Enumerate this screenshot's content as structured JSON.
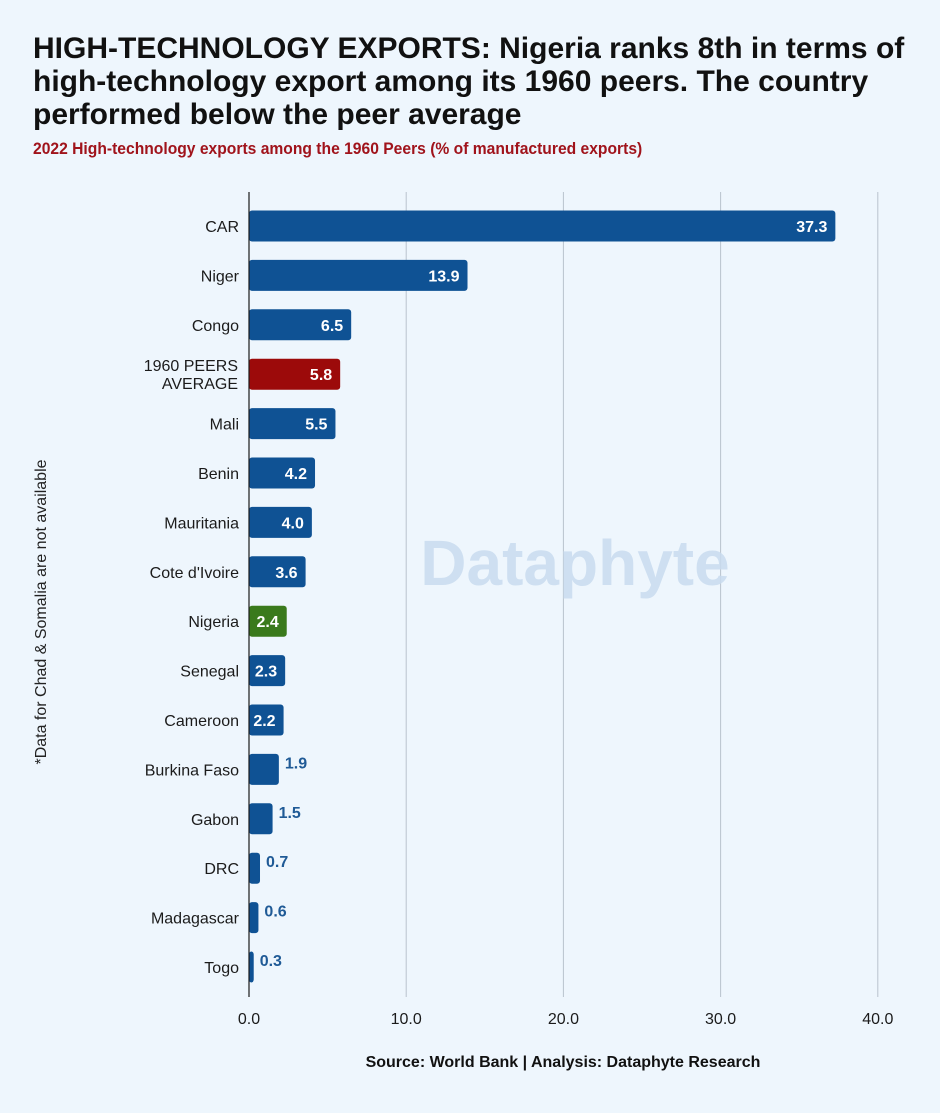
{
  "header": {
    "title": "HIGH-TECHNOLOGY EXPORTS: Nigeria ranks 8th in terms of high-technology export among its 1960 peers. The country performed below the peer average",
    "subtitle": "2022 High-technology exports among the 1960 Peers (% of manufactured exports)"
  },
  "side_note": "*Data for Chad & Somalia are not available",
  "watermark": "Dataphyte",
  "source": "Source: World Bank | Analysis: Dataphyte Research",
  "colors": {
    "default": "#0f5294",
    "average": "#9c0a0a",
    "highlight": "#3a7a1c",
    "grid": "#b9c3cd"
  },
  "chart_data": {
    "type": "bar",
    "orientation": "horizontal",
    "title": "2022 High-technology exports among the 1960 Peers (% of manufactured exports)",
    "categories": [
      "CAR",
      "Niger",
      "Congo",
      "1960 PEERS AVERAGE",
      "Mali",
      "Benin",
      "Mauritania",
      "Cote d'Ivoire",
      "Nigeria",
      "Senegal",
      "Cameroon",
      "Burkina Faso",
      "Gabon",
      "DRC",
      "Madagascar",
      "Togo"
    ],
    "values": [
      37.3,
      13.9,
      6.5,
      5.8,
      5.5,
      4.2,
      4.0,
      3.6,
      2.4,
      2.3,
      2.2,
      1.9,
      1.5,
      0.7,
      0.6,
      0.3
    ],
    "value_labels": [
      "37.3",
      "13.9",
      "6.5",
      "5.8",
      "5.5",
      "4.2",
      "4.0",
      "3.6",
      "2.4",
      "2.3",
      "2.2",
      "1.9",
      "1.5",
      "0.7",
      "0.6",
      "0.3"
    ],
    "bar_colors": [
      "default",
      "default",
      "default",
      "average",
      "default",
      "default",
      "default",
      "default",
      "highlight",
      "default",
      "default",
      "default",
      "default",
      "default",
      "default",
      "default"
    ],
    "xticks": [
      0,
      10,
      20,
      30,
      40
    ],
    "xtick_labels": [
      "0.0",
      "10.0",
      "20.0",
      "30.0",
      "40.0"
    ],
    "xlim": [
      0,
      40
    ],
    "grid": true,
    "legend": "none"
  }
}
